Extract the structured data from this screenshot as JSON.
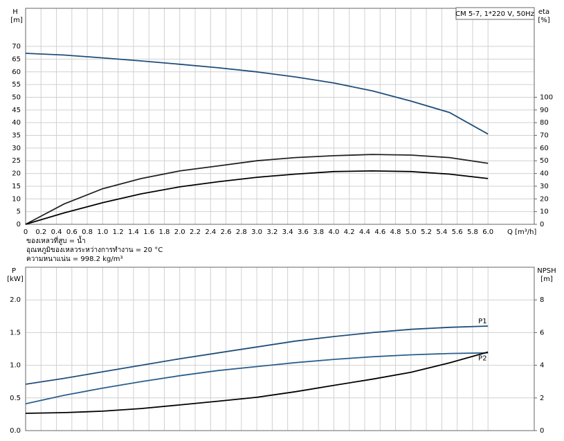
{
  "chart_data": [
    {
      "type": "line",
      "title": "CM 5-7, 1*220 V, 50Hz",
      "y_label": "H",
      "y_unit": "[m]",
      "y2_label": "eta",
      "y2_unit": "[%]",
      "x_label": "Q [m³/h]",
      "notes": [
        "ของเหลวที่สูบ = น้ำ",
        "อุณหภูมิของเหลวระหว่างการทำงาน = 20 °C",
        "ความหนาแน่น = 998.2 kg/m³"
      ],
      "grid": true,
      "xlim": [
        0,
        6.6
      ],
      "xticks": [
        0,
        0.2,
        0.4,
        0.6,
        0.8,
        {
          "value": 1.0,
          "label": "1.0"
        },
        1.2,
        1.4,
        1.6,
        1.8,
        {
          "value": 2.0,
          "label": "2.0"
        },
        2.2,
        2.4,
        2.6,
        2.8,
        {
          "value": 3.0,
          "label": "3.0"
        },
        3.2,
        3.4,
        3.6,
        3.8,
        {
          "value": 4.0,
          "label": "4.0"
        },
        4.2,
        4.4,
        4.6,
        4.8,
        {
          "value": 5.0,
          "label": "5.0"
        },
        5.2,
        5.4,
        5.6,
        5.8,
        {
          "value": 6.0,
          "label": "6.0"
        }
      ],
      "ylim": [
        0,
        85
      ],
      "yticks": [
        0,
        5,
        10,
        15,
        20,
        25,
        30,
        35,
        40,
        45,
        50,
        55,
        60,
        65,
        70
      ],
      "y2lim": [
        0,
        170
      ],
      "y2ticks": [
        0,
        10,
        20,
        30,
        40,
        50,
        60,
        70,
        80,
        90,
        100
      ],
      "x": [
        0,
        0.5,
        1,
        1.5,
        2,
        2.5,
        3,
        3.5,
        4,
        4.5,
        5,
        5.5,
        6
      ],
      "series": [
        {
          "color": "#1f4e79",
          "values": [
            67.3,
            66.6,
            65.5,
            64.3,
            63,
            61.6,
            60,
            58,
            55.6,
            52.5,
            48.5,
            44,
            35.5
          ]
        },
        {
          "color": "#222222",
          "axis": "y2",
          "values": [
            0,
            16,
            28,
            36,
            42,
            46,
            50,
            52.5,
            54,
            55,
            54.5,
            52.5,
            48
          ]
        },
        {
          "color": "#000000",
          "axis": "y2",
          "values": [
            0,
            9,
            17,
            24,
            29.5,
            33.5,
            37,
            39.5,
            41.5,
            42,
            41.5,
            39.5,
            36
          ]
        }
      ]
    },
    {
      "type": "line",
      "y_label": "P",
      "y_unit": "[kW]",
      "y2_label": "NPSH",
      "y2_unit": "[m]",
      "grid": true,
      "xlim": [
        0,
        6.6
      ],
      "ylim": [
        0,
        2.5
      ],
      "yticks": [
        {
          "value": 0,
          "label": "0.0"
        },
        0.5,
        {
          "value": 1,
          "label": "1.0"
        },
        1.5,
        {
          "value": 2,
          "label": "2.0"
        }
      ],
      "y2lim": [
        0,
        10
      ],
      "y2ticks": [
        0,
        2,
        4,
        6,
        8
      ],
      "x": [
        0,
        0.5,
        1,
        1.5,
        2,
        2.5,
        3,
        3.5,
        4,
        4.5,
        5,
        5.5,
        6
      ],
      "series": [
        {
          "name": "P1",
          "color": "#1f4e79",
          "values": [
            0.71,
            0.8,
            0.9,
            1.0,
            1.1,
            1.19,
            1.28,
            1.37,
            1.44,
            1.5,
            1.55,
            1.58,
            1.6
          ]
        },
        {
          "name": "P2",
          "color": "#2b5f8e",
          "values": [
            0.41,
            0.54,
            0.65,
            0.75,
            0.84,
            0.92,
            0.98,
            1.04,
            1.09,
            1.13,
            1.16,
            1.18,
            1.19
          ]
        },
        {
          "color": "#000000",
          "axis": "y2",
          "values": [
            1.06,
            1.1,
            1.19,
            1.35,
            1.57,
            1.8,
            2.04,
            2.38,
            2.77,
            3.15,
            3.57,
            4.15,
            4.81
          ]
        }
      ]
    }
  ]
}
